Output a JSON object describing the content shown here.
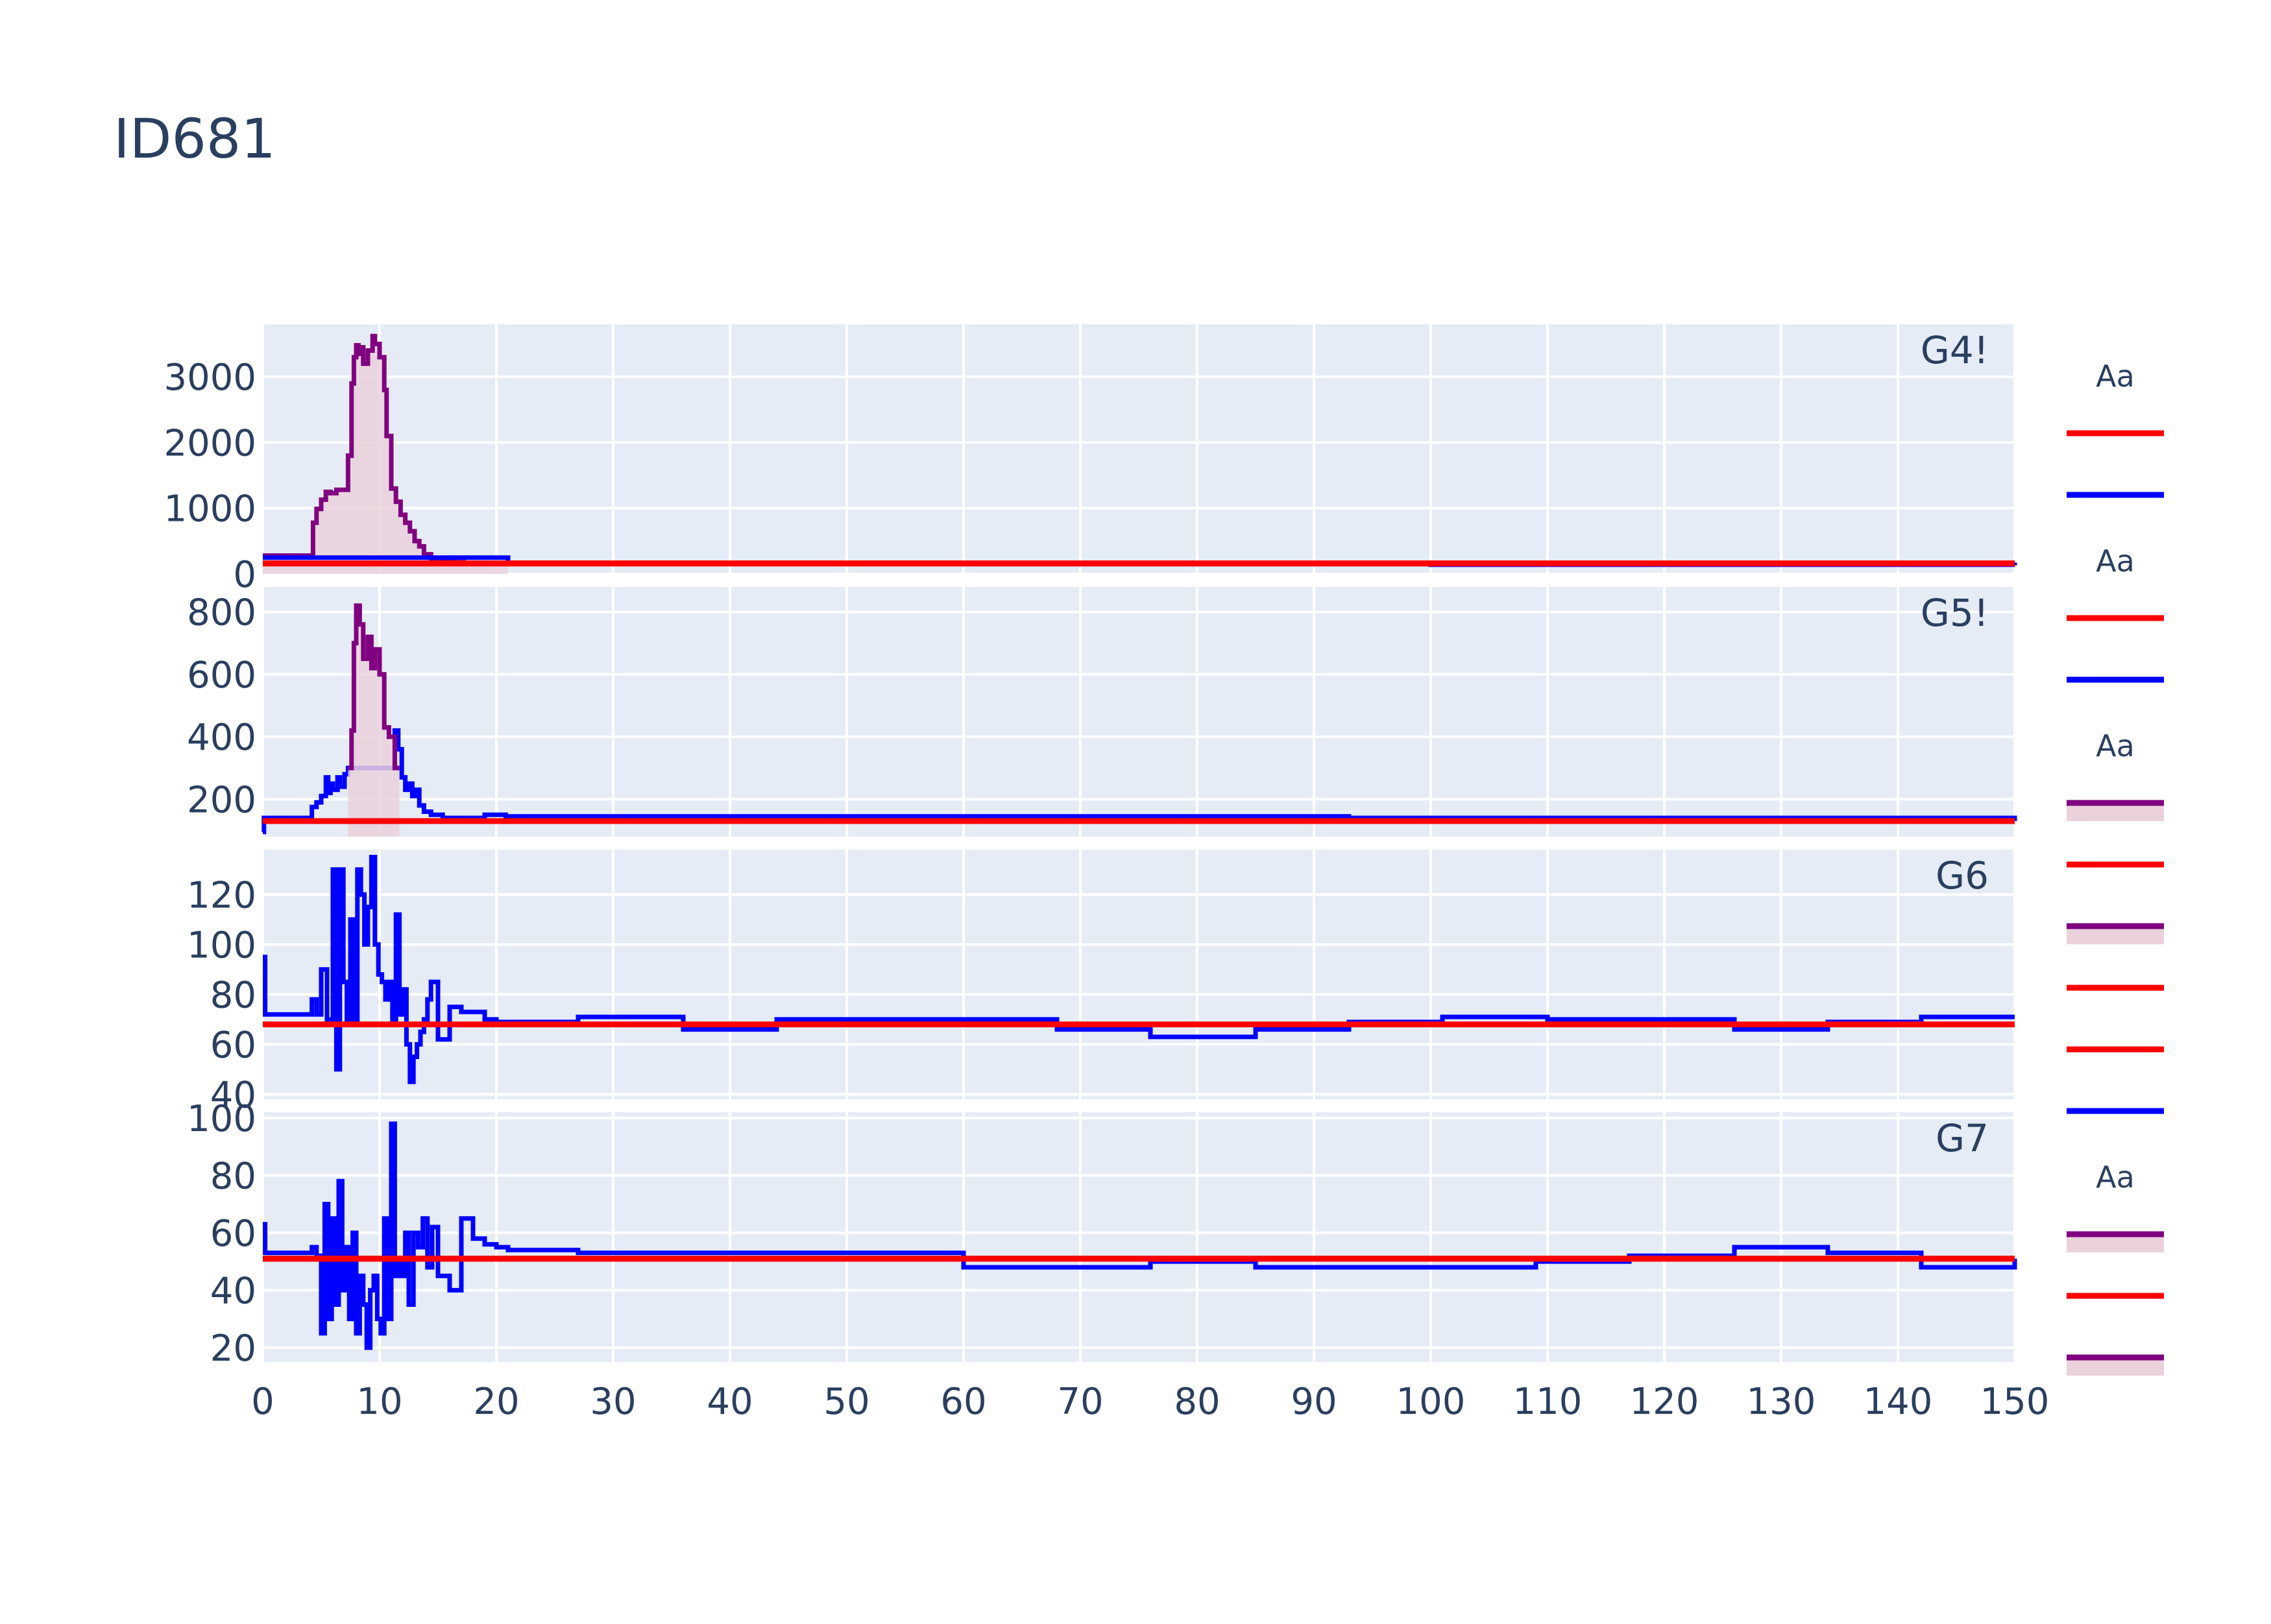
{
  "title": "ID681",
  "chart_data": {
    "type": "line",
    "shared_x": {
      "range": [
        0,
        150
      ],
      "tick_labels": [
        "0",
        "10",
        "20",
        "30",
        "40",
        "50",
        "60",
        "70",
        "80",
        "90",
        "100",
        "110",
        "120",
        "130",
        "140",
        "150"
      ],
      "grid": true
    },
    "panels": [
      {
        "annotation": "G4!",
        "y_range": [
          0,
          3800
        ],
        "y_tick_labels": [
          "0",
          "1000",
          "2000",
          "3000"
        ],
        "y_ticks": [
          0,
          1000,
          2000,
          3000
        ],
        "series": [
          {
            "style": "histogram-area",
            "color": "#800080",
            "fill": "#ead1dc",
            "x": [
              0,
              4.3,
              4.6,
              5.0,
              5.4,
              5.8,
              6.3,
              7.3,
              7.6,
              7.8,
              8.0,
              8.2,
              8.4,
              8.6,
              9.0,
              9.4,
              9.6,
              10.0,
              10.4,
              10.6,
              11.0,
              11.4,
              11.8,
              12.2,
              12.6,
              13.0,
              13.4,
              13.8,
              14.4,
              15.4,
              16.2,
              17.2,
              21
            ],
            "y": [
              280,
              780,
              990,
              1130,
              1250,
              1230,
              1280,
              1800,
              2900,
              3300,
              3480,
              3350,
              3450,
              3200,
              3400,
              3620,
              3500,
              3300,
              2800,
              2100,
              1300,
              1100,
              900,
              780,
              650,
              500,
              420,
              300,
              240,
              200,
              180,
              160,
              160
            ]
          },
          {
            "style": "step",
            "color": "#0000ff",
            "x": [
              0,
              21,
              60,
              100,
              150
            ],
            "y": [
              250,
              160,
              150,
              140,
              130
            ]
          },
          {
            "style": "line",
            "color": "#ff0000",
            "x": [
              0,
              150
            ],
            "y": [
              160,
              160
            ]
          }
        ]
      },
      {
        "annotation": "G5!",
        "y_range": [
          80,
          880
        ],
        "y_tick_labels": [
          "200",
          "400",
          "600",
          "800"
        ],
        "y_ticks": [
          200,
          400,
          600,
          800
        ],
        "series": [
          {
            "style": "step",
            "color": "#0000ff",
            "x": [
              0,
              0.1,
              4.2,
              4.6,
              5.0,
              5.4,
              5.6,
              5.8,
              6.0,
              6.4,
              6.6,
              7.0,
              7.3,
              11.3,
              11.6,
              11.9,
              12.2,
              12.5,
              12.8,
              13.1,
              13.4,
              13.8,
              14.4,
              15.4,
              19,
              20.8,
              68,
              93,
              150
            ],
            "y": [
              95,
              140,
              175,
              190,
              210,
              270,
              220,
              250,
              230,
              270,
              240,
              280,
              300,
              420,
              360,
              270,
              230,
              250,
              210,
              230,
              180,
              160,
              150,
              140,
              150,
              145,
              145,
              140,
              130
            ]
          },
          {
            "style": "histogram-area",
            "color": "#800080",
            "fill": "#ead1dc",
            "x": [
              7.3,
              7.6,
              7.8,
              8.0,
              8.3,
              8.6,
              9.0,
              9.3,
              9.6,
              10.0,
              10.4,
              10.8,
              11.3,
              11.7
            ],
            "y": [
              300,
              420,
              700,
              820,
              760,
              650,
              720,
              620,
              680,
              600,
              430,
              400,
              300,
              300
            ]
          },
          {
            "style": "line",
            "color": "#ff0000",
            "x": [
              0,
              150
            ],
            "y": [
              130,
              130
            ]
          }
        ]
      },
      {
        "annotation": "G6",
        "y_range": [
          38,
          138
        ],
        "y_tick_labels": [
          "40",
          "60",
          "80",
          "100",
          "120"
        ],
        "y_ticks": [
          40,
          60,
          80,
          100,
          120
        ],
        "series": [
          {
            "style": "step",
            "color": "#0000ff",
            "x": [
              0,
              0.2,
              4.2,
              4.6,
              5.0,
              5.5,
              6.0,
              6.3,
              6.6,
              6.9,
              7.2,
              7.5,
              7.8,
              8.1,
              8.4,
              8.7,
              9.0,
              9.3,
              9.6,
              9.9,
              10.2,
              10.5,
              10.8,
              11.1,
              11.4,
              11.7,
              12.0,
              12.3,
              12.6,
              12.9,
              13.2,
              13.5,
              13.8,
              14.1,
              14.4,
              15.0,
              16.0,
              17.0,
              19.0,
              20.0,
              27,
              36,
              44,
              60,
              68,
              76,
              85,
              93,
              101,
              110,
              126,
              134,
              142,
              150
            ],
            "y": [
              95,
              72,
              78,
              72,
              90,
              70,
              130,
              50,
              130,
              85,
              68,
              110,
              70,
              130,
              120,
              100,
              115,
              135,
              100,
              88,
              85,
              78,
              85,
              68,
              112,
              72,
              82,
              60,
              45,
              55,
              60,
              65,
              70,
              78,
              85,
              62,
              75,
              73,
              70,
              69,
              71,
              66,
              70,
              70,
              66,
              63,
              66,
              69,
              71,
              70,
              66,
              69,
              71,
              71
            ]
          },
          {
            "style": "line",
            "color": "#ff0000",
            "x": [
              0,
              150
            ],
            "y": [
              68,
              68
            ]
          }
        ]
      },
      {
        "annotation": "G7",
        "y_range": [
          15,
          102
        ],
        "y_tick_labels": [
          "20",
          "40",
          "60",
          "80",
          "100"
        ],
        "y_ticks": [
          20,
          40,
          60,
          80,
          100
        ],
        "series": [
          {
            "style": "step",
            "color": "#0000ff",
            "x": [
              0,
              0.2,
              4.2,
              4.6,
              5.0,
              5.3,
              5.6,
              5.9,
              6.2,
              6.5,
              6.8,
              7.1,
              7.4,
              7.7,
              8.0,
              8.3,
              8.6,
              8.9,
              9.2,
              9.5,
              9.8,
              10.1,
              10.4,
              10.7,
              11.0,
              11.3,
              11.6,
              11.9,
              12.2,
              12.5,
              12.9,
              13.3,
              13.7,
              14.1,
              14.5,
              15,
              16,
              17,
              18,
              19,
              20,
              21,
              27,
              52,
              60,
              76,
              85,
              101,
              109,
              117,
              126,
              134,
              142,
              150
            ],
            "y": [
              63,
              53,
              55,
              52,
              25,
              70,
              30,
              65,
              35,
              78,
              40,
              55,
              30,
              60,
              25,
              45,
              35,
              20,
              40,
              45,
              30,
              25,
              65,
              30,
              98,
              45,
              50,
              45,
              60,
              35,
              60,
              55,
              65,
              48,
              62,
              45,
              40,
              65,
              58,
              56,
              55,
              54,
              53,
              53,
              48,
              50,
              48,
              48,
              50,
              52,
              55,
              53,
              48,
              51
            ]
          },
          {
            "style": "line",
            "color": "#ff0000",
            "x": [
              0,
              150
            ],
            "y": [
              51,
              51
            ]
          }
        ]
      }
    ],
    "legend": {
      "placement": "right",
      "groups": [
        {
          "title": "Aa",
          "items": [
            {
              "color": "#ff0000",
              "type": "line"
            },
            {
              "color": "#0000ff",
              "type": "line"
            }
          ]
        },
        {
          "title": "Aa",
          "items": [
            {
              "color": "#ff0000",
              "type": "line"
            },
            {
              "color": "#0000ff",
              "type": "line"
            }
          ]
        },
        {
          "title": "Aa",
          "items": [
            {
              "color": "#800080",
              "type": "area"
            },
            {
              "color": "#ff0000",
              "type": "line"
            },
            {
              "color": "#800080",
              "type": "area"
            },
            {
              "color": "#ff0000",
              "type": "line"
            },
            {
              "color": "#ff0000",
              "type": "line"
            },
            {
              "color": "#0000ff",
              "type": "line"
            }
          ]
        },
        {
          "title": "Aa",
          "items": [
            {
              "color": "#800080",
              "type": "area"
            },
            {
              "color": "#ff0000",
              "type": "line"
            },
            {
              "color": "#800080",
              "type": "area"
            }
          ]
        }
      ]
    }
  }
}
